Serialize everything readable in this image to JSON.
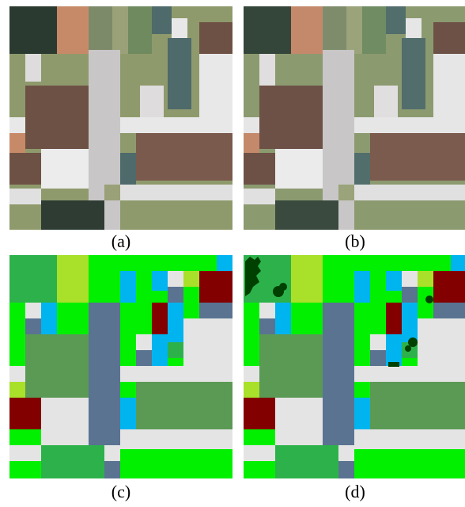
{
  "panels": [
    {
      "id": "a",
      "caption": "(a)"
    },
    {
      "id": "b",
      "caption": "(b)"
    },
    {
      "id": "c",
      "caption": "(c)"
    },
    {
      "id": "d",
      "caption": "(d)"
    }
  ],
  "colors": {
    "rgb_roof_brown": "#6e5145",
    "rgb_road_gray": "#c9c6c8",
    "rgb_vegetation": "#8f9a6c",
    "rgb_light": "#dedcdc",
    "rgb_tree_dark": "#2b3a30",
    "rgb_orange": "#c78a68",
    "rgb_teal": "#4e6a6a",
    "lab_low_vegetation": "#5a9a55",
    "lab_impervious": "#e4e4e4",
    "lab_road": "#5a7391",
    "lab_grass": "#00f000",
    "lab_tree": "#2db24b",
    "lab_clutter": "#820000",
    "lab_water": "#00b4f0",
    "lab_yellow_green": "#a8e02a",
    "lab_dark_tree": "#004000"
  }
}
